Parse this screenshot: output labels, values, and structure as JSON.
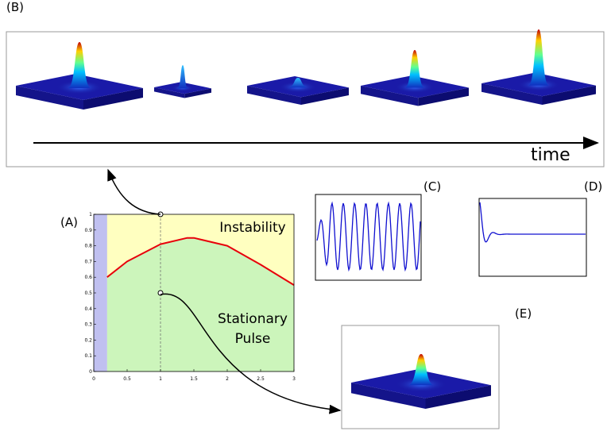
{
  "panel_labels": {
    "a": "(A)",
    "b": "(B)",
    "c": "(C)",
    "d": "(D)",
    "e": "(E)"
  },
  "time_label": "time",
  "chart_data": {
    "type": "line",
    "instability_label": "Instability",
    "pulse_label_lines": [
      "Stationary",
      "Pulse"
    ],
    "x": [
      0.2,
      0.5,
      1,
      1.4,
      1.5,
      2,
      2.5,
      3
    ],
    "series": [
      {
        "color": "#e8000b",
        "values": [
          0.6,
          0.7,
          0.81,
          0.85,
          0.85,
          0.8,
          0.68,
          0.55
        ]
      }
    ],
    "points": {
      "x": [
        1,
        1
      ],
      "y": [
        1,
        0.5
      ]
    },
    "xlim": [
      0,
      3
    ],
    "ylim": [
      0,
      1
    ],
    "xticks": [
      0,
      0.5,
      1,
      1.5,
      2,
      2.5,
      3
    ],
    "yticks": [
      0,
      0.1,
      0.2,
      0.3,
      0.4,
      0.5,
      0.6,
      0.7,
      0.8,
      0.9,
      1
    ]
  }
}
